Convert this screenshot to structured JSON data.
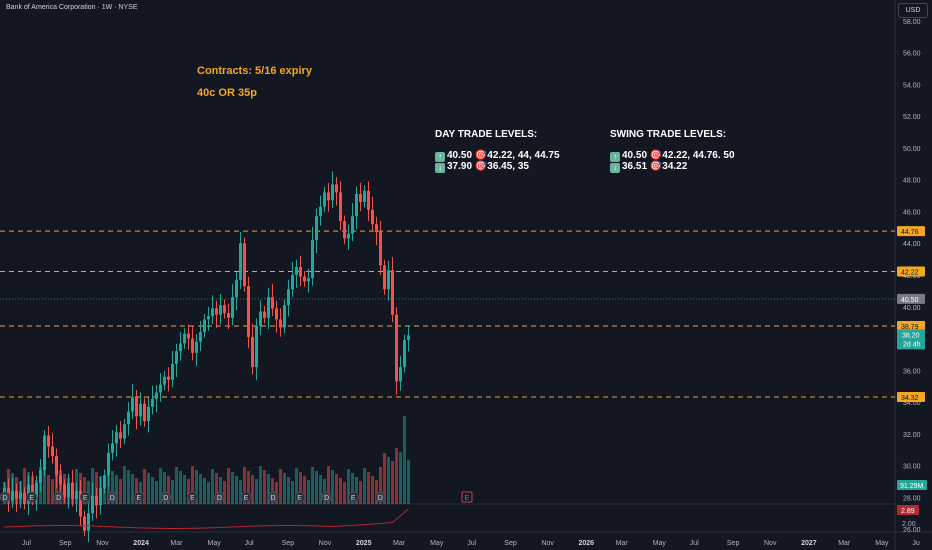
{
  "header": {
    "symbol_title": "Bank of America Corporation · 1W · NYSE"
  },
  "toolbar": {
    "currency_button": "USD"
  },
  "annotations": {
    "contracts": "Contracts: 5/16 expiry",
    "options": "40c OR 35p",
    "day_title": "DAY TRADE LEVELS:",
    "day_line1": "40.50 🎯42.22, 44, 44.75",
    "day_line2": "37.90 🎯36.45, 35",
    "swing_title": "SWING TRADE LEVELS:",
    "swing_line1": "40.50 🎯42.22, 44.76. 50",
    "swing_line2": "36.51 🎯34.22"
  },
  "price_axis": {
    "ticks": [
      "58.00",
      "56.00",
      "54.00",
      "52.00",
      "50.00",
      "48.00",
      "46.00",
      "44.00",
      "42.00",
      "40.00",
      "38.00",
      "36.00",
      "34.00",
      "32.00",
      "30.00",
      "28.00",
      "26.00"
    ],
    "level_labels": [
      {
        "value": "44.76",
        "color": "#f5a623"
      },
      {
        "value": "42.22",
        "color": "#f5a623"
      },
      {
        "value": "40.50",
        "color": "#787b86"
      },
      {
        "value": "38.79",
        "color": "#f5a623"
      },
      {
        "value": "34.32",
        "color": "#f5a623"
      }
    ],
    "current_price": "38.20",
    "countdown": "2d 4h",
    "volume_label": "91.29M",
    "indicator_value": "2.89",
    "indicator_tick": "2.00"
  },
  "time_axis": {
    "labels": [
      "Jul",
      "Sep",
      "Nov",
      "2024",
      "Mar",
      "May",
      "Jul",
      "Sep",
      "Nov",
      "2025",
      "Mar",
      "May",
      "Jul",
      "Sep",
      "Nov",
      "2026",
      "Mar",
      "May",
      "Jul",
      "Sep",
      "Nov",
      "2027",
      "Mar",
      "May",
      "Ju"
    ]
  },
  "colors": {
    "background": "#131722",
    "up": "#26a69a",
    "down": "#ef5350",
    "level_line": "#f5a623",
    "level_40_50": "#4a6b7a",
    "indicator": "#b22833"
  },
  "chart_data": {
    "type": "candlestick",
    "symbol": "BAC",
    "interval": "1W",
    "exchange": "NYSE",
    "ylim": [
      25,
      59
    ],
    "horizontal_levels": [
      44.76,
      42.22,
      40.5,
      38.79,
      34.32
    ],
    "closes": [
      28.6,
      27.8,
      28.4,
      27.9,
      28.3,
      27.6,
      28.8,
      28.0,
      28.9,
      29.7,
      31.9,
      31.2,
      30.6,
      29.4,
      28.8,
      28.0,
      28.9,
      27.9,
      28.4,
      26.8,
      25.9,
      27.0,
      28.1,
      27.5,
      28.6,
      29.4,
      30.8,
      31.4,
      32.1,
      31.7,
      32.6,
      33.4,
      34.3,
      33.1,
      33.9,
      32.8,
      33.7,
      34.2,
      34.6,
      35.1,
      35.6,
      35.4,
      36.4,
      37.2,
      37.7,
      38.3,
      38.0,
      37.1,
      37.8,
      38.4,
      39.2,
      39.4,
      39.9,
      39.5,
      40.1,
      39.6,
      39.3,
      40.6,
      41.7,
      44.0,
      41.3,
      38.1,
      36.2,
      38.8,
      39.7,
      39.3,
      40.6,
      39.9,
      39.2,
      38.7,
      40.1,
      41.1,
      42.0,
      42.5,
      41.9,
      41.6,
      41.8,
      44.2,
      45.7,
      46.3,
      47.2,
      46.7,
      47.7,
      47.2,
      45.4,
      44.3,
      44.6,
      45.7,
      47.1,
      46.6,
      47.3,
      46.1,
      45.2,
      44.7,
      42.6,
      41.1,
      42.3,
      39.5,
      35.3,
      36.2,
      37.9,
      38.2
    ]
  }
}
